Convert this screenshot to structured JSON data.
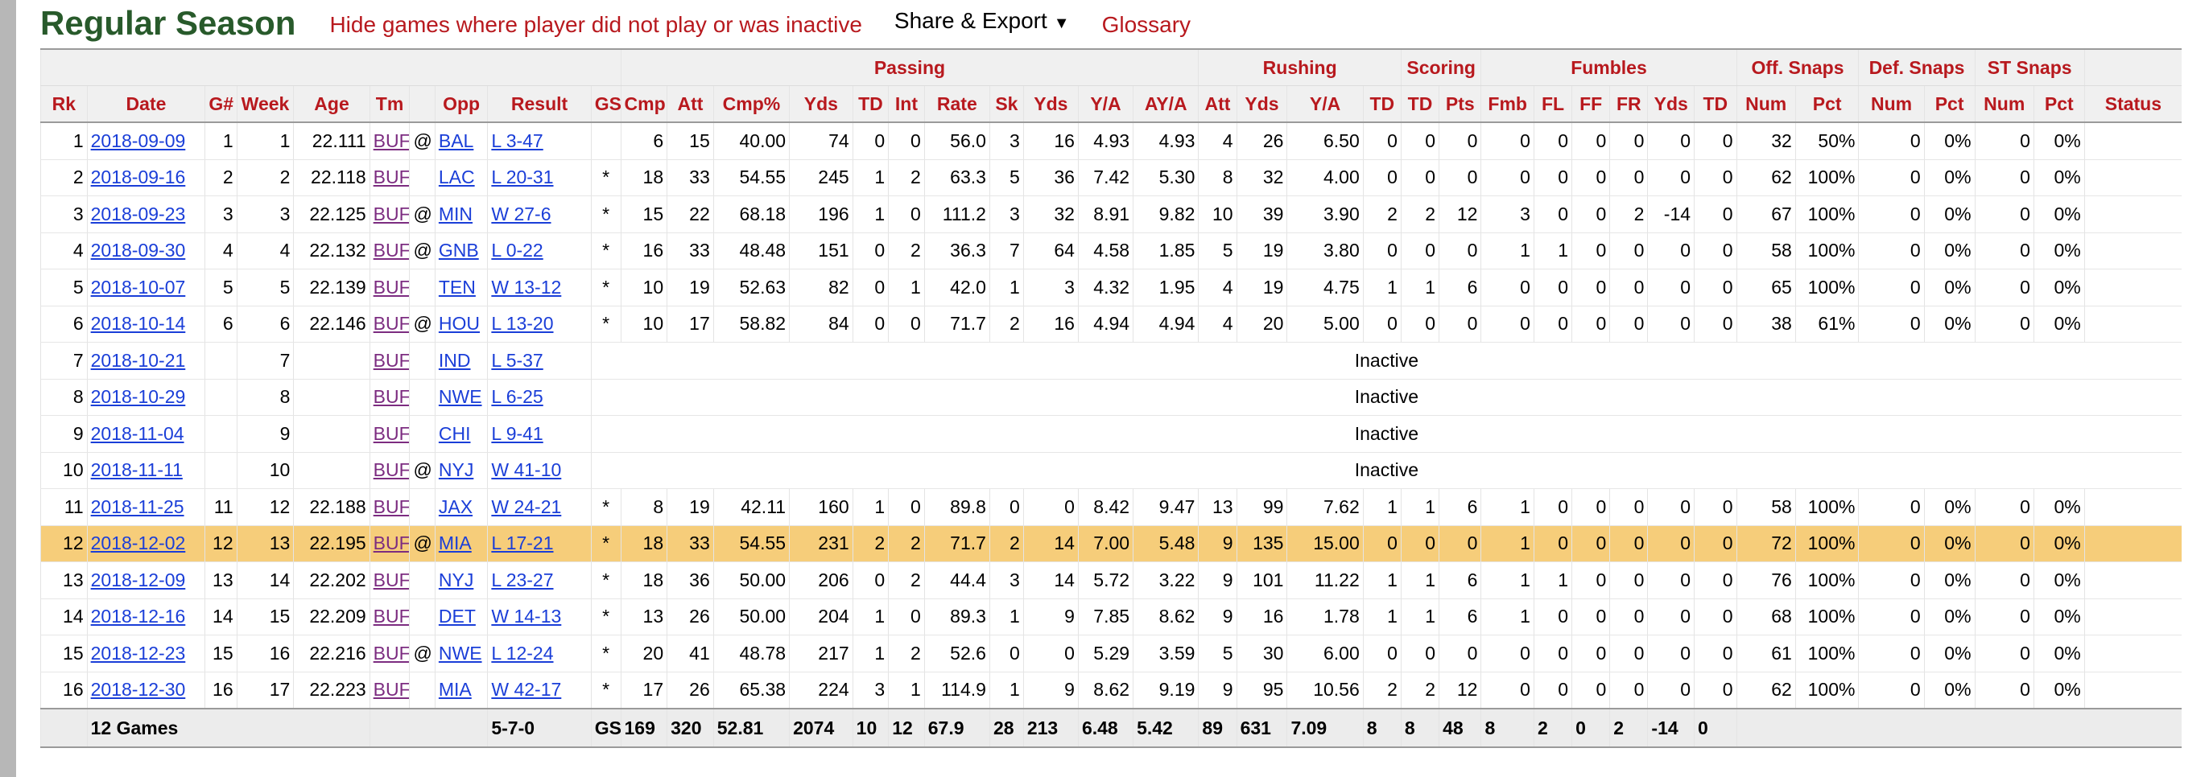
{
  "header": {
    "title": "Regular Season",
    "hide_link": "Hide games where player did not play or was inactive",
    "share_label": "Share & Export",
    "share_caret": "▼",
    "glossary_label": "Glossary"
  },
  "over_headers": [
    "Passing",
    "Rushing",
    "Scoring",
    "Fumbles",
    "Off. Snaps",
    "Def. Snaps",
    "ST Snaps"
  ],
  "columns": [
    "Rk",
    "Date",
    "G#",
    "Week",
    "Age",
    "Tm",
    "",
    "Opp",
    "Result",
    "GS",
    "Cmp",
    "Att",
    "Cmp%",
    "Yds",
    "TD",
    "Int",
    "Rate",
    "Sk",
    "Yds",
    "Y/A",
    "AY/A",
    "Att",
    "Yds",
    "Y/A",
    "TD",
    "TD",
    "Pts",
    "Fmb",
    "FL",
    "FF",
    "FR",
    "Yds",
    "TD",
    "Num",
    "Pct",
    "Num",
    "Pct",
    "Num",
    "Pct",
    "Status"
  ],
  "rows": [
    {
      "cells": [
        "1",
        "2018-09-09",
        "1",
        "1",
        "22.111",
        "BUF",
        "@",
        "BAL",
        "L 3-47",
        "",
        "6",
        "15",
        "40.00",
        "74",
        "0",
        "0",
        "56.0",
        "3",
        "16",
        "4.93",
        "4.93",
        "4",
        "26",
        "6.50",
        "0",
        "0",
        "0",
        "0",
        "0",
        "0",
        "0",
        "0",
        "0",
        "32",
        "50%",
        "0",
        "0%",
        "0",
        "0%",
        ""
      ]
    },
    {
      "cells": [
        "2",
        "2018-09-16",
        "2",
        "2",
        "22.118",
        "BUF",
        "",
        "LAC",
        "L 20-31",
        "*",
        "18",
        "33",
        "54.55",
        "245",
        "1",
        "2",
        "63.3",
        "5",
        "36",
        "7.42",
        "5.30",
        "8",
        "32",
        "4.00",
        "0",
        "0",
        "0",
        "0",
        "0",
        "0",
        "0",
        "0",
        "0",
        "62",
        "100%",
        "0",
        "0%",
        "0",
        "0%",
        ""
      ]
    },
    {
      "cells": [
        "3",
        "2018-09-23",
        "3",
        "3",
        "22.125",
        "BUF",
        "@",
        "MIN",
        "W 27-6",
        "*",
        "15",
        "22",
        "68.18",
        "196",
        "1",
        "0",
        "111.2",
        "3",
        "32",
        "8.91",
        "9.82",
        "10",
        "39",
        "3.90",
        "2",
        "2",
        "12",
        "3",
        "0",
        "0",
        "2",
        "-14",
        "0",
        "67",
        "100%",
        "0",
        "0%",
        "0",
        "0%",
        ""
      ]
    },
    {
      "cells": [
        "4",
        "2018-09-30",
        "4",
        "4",
        "22.132",
        "BUF",
        "@",
        "GNB",
        "L 0-22",
        "*",
        "16",
        "33",
        "48.48",
        "151",
        "0",
        "2",
        "36.3",
        "7",
        "64",
        "4.58",
        "1.85",
        "5",
        "19",
        "3.80",
        "0",
        "0",
        "0",
        "1",
        "1",
        "0",
        "0",
        "0",
        "0",
        "58",
        "100%",
        "0",
        "0%",
        "0",
        "0%",
        ""
      ]
    },
    {
      "cells": [
        "5",
        "2018-10-07",
        "5",
        "5",
        "22.139",
        "BUF",
        "",
        "TEN",
        "W 13-12",
        "*",
        "10",
        "19",
        "52.63",
        "82",
        "0",
        "1",
        "42.0",
        "1",
        "3",
        "4.32",
        "1.95",
        "4",
        "19",
        "4.75",
        "1",
        "1",
        "6",
        "0",
        "0",
        "0",
        "0",
        "0",
        "0",
        "65",
        "100%",
        "0",
        "0%",
        "0",
        "0%",
        ""
      ]
    },
    {
      "cells": [
        "6",
        "2018-10-14",
        "6",
        "6",
        "22.146",
        "BUF",
        "@",
        "HOU",
        "L 13-20",
        "*",
        "10",
        "17",
        "58.82",
        "84",
        "0",
        "0",
        "71.7",
        "2",
        "16",
        "4.94",
        "4.94",
        "4",
        "20",
        "5.00",
        "0",
        "0",
        "0",
        "0",
        "0",
        "0",
        "0",
        "0",
        "0",
        "38",
        "61%",
        "0",
        "0%",
        "0",
        "0%",
        ""
      ]
    },
    {
      "cells": [
        "7",
        "2018-10-21",
        "",
        "7",
        "",
        "BUF",
        "",
        "IND",
        "L 5-37"
      ],
      "inactive": "Inactive"
    },
    {
      "cells": [
        "8",
        "2018-10-29",
        "",
        "8",
        "",
        "BUF",
        "",
        "NWE",
        "L 6-25"
      ],
      "inactive": "Inactive"
    },
    {
      "cells": [
        "9",
        "2018-11-04",
        "",
        "9",
        "",
        "BUF",
        "",
        "CHI",
        "L 9-41"
      ],
      "inactive": "Inactive"
    },
    {
      "cells": [
        "10",
        "2018-11-11",
        "",
        "10",
        "",
        "BUF",
        "@",
        "NYJ",
        "W 41-10"
      ],
      "inactive": "Inactive"
    },
    {
      "cells": [
        "11",
        "2018-11-25",
        "11",
        "12",
        "22.188",
        "BUF",
        "",
        "JAX",
        "W 24-21",
        "*",
        "8",
        "19",
        "42.11",
        "160",
        "1",
        "0",
        "89.8",
        "0",
        "0",
        "8.42",
        "9.47",
        "13",
        "99",
        "7.62",
        "1",
        "1",
        "6",
        "1",
        "0",
        "0",
        "0",
        "0",
        "0",
        "58",
        "100%",
        "0",
        "0%",
        "0",
        "0%",
        ""
      ]
    },
    {
      "cells": [
        "12",
        "2018-12-02",
        "12",
        "13",
        "22.195",
        "BUF",
        "@",
        "MIA",
        "L 17-21",
        "*",
        "18",
        "33",
        "54.55",
        "231",
        "2",
        "2",
        "71.7",
        "2",
        "14",
        "7.00",
        "5.48",
        "9",
        "135",
        "15.00",
        "0",
        "0",
        "0",
        "1",
        "0",
        "0",
        "0",
        "0",
        "0",
        "72",
        "100%",
        "0",
        "0%",
        "0",
        "0%",
        ""
      ],
      "highlight": true
    },
    {
      "cells": [
        "13",
        "2018-12-09",
        "13",
        "14",
        "22.202",
        "BUF",
        "",
        "NYJ",
        "L 23-27",
        "*",
        "18",
        "36",
        "50.00",
        "206",
        "0",
        "2",
        "44.4",
        "3",
        "14",
        "5.72",
        "3.22",
        "9",
        "101",
        "11.22",
        "1",
        "1",
        "6",
        "1",
        "1",
        "0",
        "0",
        "0",
        "0",
        "76",
        "100%",
        "0",
        "0%",
        "0",
        "0%",
        ""
      ]
    },
    {
      "cells": [
        "14",
        "2018-12-16",
        "14",
        "15",
        "22.209",
        "BUF",
        "",
        "DET",
        "W 14-13",
        "*",
        "13",
        "26",
        "50.00",
        "204",
        "1",
        "0",
        "89.3",
        "1",
        "9",
        "7.85",
        "8.62",
        "9",
        "16",
        "1.78",
        "1",
        "1",
        "6",
        "1",
        "0",
        "0",
        "0",
        "0",
        "0",
        "68",
        "100%",
        "0",
        "0%",
        "0",
        "0%",
        ""
      ]
    },
    {
      "cells": [
        "15",
        "2018-12-23",
        "15",
        "16",
        "22.216",
        "BUF",
        "@",
        "NWE",
        "L 12-24",
        "*",
        "20",
        "41",
        "48.78",
        "217",
        "1",
        "2",
        "52.6",
        "0",
        "0",
        "5.29",
        "3.59",
        "5",
        "30",
        "6.00",
        "0",
        "0",
        "0",
        "0",
        "0",
        "0",
        "0",
        "0",
        "0",
        "61",
        "100%",
        "0",
        "0%",
        "0",
        "0%",
        ""
      ]
    },
    {
      "cells": [
        "16",
        "2018-12-30",
        "16",
        "17",
        "22.223",
        "BUF",
        "",
        "MIA",
        "W 42-17",
        "*",
        "17",
        "26",
        "65.38",
        "224",
        "3",
        "1",
        "114.9",
        "1",
        "9",
        "8.62",
        "9.19",
        "9",
        "95",
        "10.56",
        "2",
        "2",
        "12",
        "0",
        "0",
        "0",
        "0",
        "0",
        "0",
        "62",
        "100%",
        "0",
        "0%",
        "0",
        "0%",
        ""
      ]
    }
  ],
  "totals": {
    "label": "12 Games",
    "record": "5-7-0",
    "gs": "GS",
    "cells": [
      "169",
      "320",
      "52.81",
      "2074",
      "10",
      "12",
      "67.9",
      "28",
      "213",
      "6.48",
      "5.42",
      "89",
      "631",
      "7.09",
      "8",
      "8",
      "48",
      "8",
      "2",
      "0",
      "2",
      "-14",
      "0"
    ]
  }
}
